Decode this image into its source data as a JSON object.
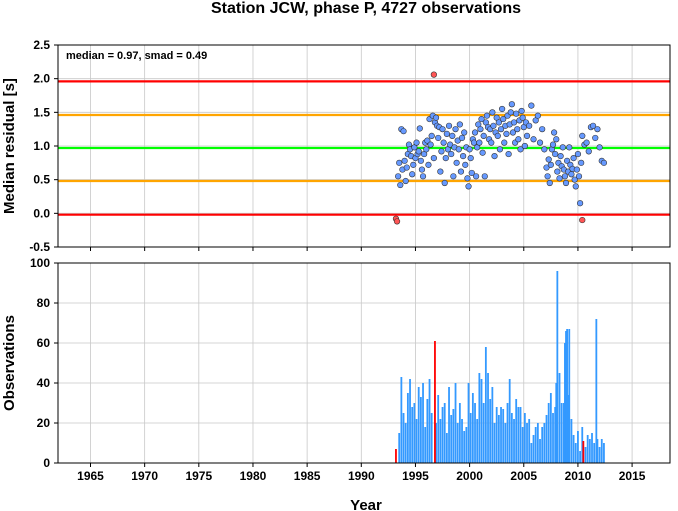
{
  "chart_data": [
    {
      "type": "scatter",
      "title": "Station JCW, phase P, 4727 observations",
      "annotation": "median = 0.97, smad = 0.49",
      "xlabel": "",
      "ylabel": "Median residual [s]",
      "xlim": [
        1962,
        2018.5
      ],
      "ylim": [
        -0.5,
        2.5
      ],
      "yticks": [
        "-0.5",
        "0.0",
        "0.5",
        "1.0",
        "1.5",
        "2.0",
        "2.5"
      ],
      "grid": true,
      "reference_lines": [
        {
          "y": 1.96,
          "color": "#ff0000"
        },
        {
          "y": 1.46,
          "color": "#ffa500"
        },
        {
          "y": 0.97,
          "color": "#00ff00"
        },
        {
          "y": 0.48,
          "color": "#ffa500"
        },
        {
          "y": -0.02,
          "color": "#ff0000"
        }
      ],
      "series": [
        {
          "color": "#6699ff",
          "x": [
            1993.4,
            1993.5,
            1993.6,
            1993.7,
            1993.8,
            1993.9,
            1994.0,
            1994.1,
            1994.2,
            1994.3,
            1994.4,
            1994.5,
            1994.6,
            1994.7,
            1994.8,
            1994.9,
            1995.0,
            1995.1,
            1995.2,
            1995.3,
            1995.4,
            1995.5,
            1995.6,
            1995.7,
            1995.8,
            1995.9,
            1996.0,
            1996.1,
            1996.2,
            1996.3,
            1996.4,
            1996.5,
            1996.6,
            1996.7,
            1996.8,
            1996.9,
            1997.0,
            1997.1,
            1997.2,
            1997.3,
            1997.4,
            1997.5,
            1997.6,
            1997.7,
            1997.8,
            1997.9,
            1998.0,
            1998.1,
            1998.2,
            1998.3,
            1998.4,
            1998.5,
            1998.6,
            1998.7,
            1998.8,
            1998.9,
            1999.0,
            1999.1,
            1999.2,
            1999.3,
            1999.4,
            1999.5,
            1999.6,
            1999.7,
            1999.8,
            1999.9,
            2000.0,
            2000.1,
            2000.2,
            2000.3,
            2000.4,
            2000.5,
            2000.6,
            2000.7,
            2000.8,
            2000.9,
            2001.0,
            2001.1,
            2001.2,
            2001.3,
            2001.4,
            2001.5,
            2001.6,
            2001.7,
            2001.8,
            2001.9,
            2002.0,
            2002.1,
            2002.2,
            2002.3,
            2002.4,
            2002.5,
            2002.6,
            2002.7,
            2002.8,
            2002.9,
            2003.0,
            2003.1,
            2003.2,
            2003.3,
            2003.4,
            2003.5,
            2003.6,
            2003.7,
            2003.8,
            2003.9,
            2004.0,
            2004.1,
            2004.2,
            2004.3,
            2004.4,
            2004.5,
            2004.6,
            2004.7,
            2004.8,
            2004.9,
            2005.0,
            2005.1,
            2005.2,
            2005.3,
            2005.5,
            2005.7,
            2005.9,
            2006.1,
            2006.3,
            2006.5,
            2006.7,
            2006.9,
            2007.1,
            2007.2,
            2007.3,
            2007.4,
            2007.5,
            2007.6,
            2007.7,
            2007.8,
            2007.9,
            2008.0,
            2008.1,
            2008.2,
            2008.3,
            2008.4,
            2008.5,
            2008.6,
            2008.7,
            2008.8,
            2008.9,
            2009.0,
            2009.1,
            2009.2,
            2009.3,
            2009.4,
            2009.5,
            2009.6,
            2009.7,
            2009.8,
            2009.9,
            2010.0,
            2010.1,
            2010.2,
            2010.3,
            2010.4,
            2010.6,
            2010.8,
            2011.0,
            2011.2,
            2011.4,
            2011.6,
            2011.8,
            2012.0,
            2012.2,
            2012.4
          ],
          "y": [
            0.55,
            0.75,
            0.42,
            1.25,
            0.65,
            1.22,
            0.78,
            0.48,
            0.68,
            0.88,
            1.02,
            0.95,
            0.85,
            0.58,
            0.72,
            0.98,
            0.82,
            1.05,
            0.88,
            0.92,
            1.26,
            0.78,
            0.65,
            0.55,
            0.88,
            1.05,
            0.95,
            1.08,
            0.72,
            1.4,
            1.02,
            1.15,
            1.45,
            0.82,
            1.35,
            1.42,
            1.3,
            1.12,
            1.28,
            0.62,
            0.92,
            1.25,
            1.05,
            0.45,
            0.82,
            1.18,
            0.95,
            1.3,
            1.02,
            0.88,
            1.15,
            0.55,
            0.98,
            1.25,
            0.75,
            1.08,
            0.95,
            1.32,
            0.62,
            1.12,
            0.85,
            1.2,
            0.72,
            0.98,
            0.52,
            0.4,
            0.95,
            0.82,
            0.6,
            1.1,
            1.05,
            1.2,
            0.55,
            0.98,
            1.32,
            1.05,
            1.25,
            1.4,
            0.9,
            1.15,
            0.55,
            1.35,
            1.45,
            1.28,
            1.1,
            1.25,
            1.05,
            1.5,
            1.3,
            0.85,
            1.2,
            1.42,
            1.15,
            1.35,
            0.95,
            1.25,
            1.55,
            1.4,
            1.05,
            1.3,
            1.18,
            1.45,
            0.88,
            1.32,
            1.5,
            1.62,
            1.2,
            1.35,
            1.05,
            1.48,
            1.25,
            1.1,
            1.38,
            0.95,
            1.52,
            1.42,
            1.28,
            1.0,
            1.35,
            1.15,
            1.3,
            1.6,
            1.1,
            1.38,
            1.45,
            1.05,
            1.25,
            0.95,
            0.68,
            0.55,
            0.8,
            0.45,
            0.72,
            0.95,
            1.02,
            1.2,
            0.88,
            1.1,
            0.62,
            0.75,
            0.52,
            0.85,
            0.7,
            0.98,
            0.65,
            0.55,
            0.45,
            0.78,
            0.62,
            0.98,
            0.72,
            0.58,
            0.66,
            0.82,
            0.5,
            0.4,
            0.65,
            0.88,
            0.55,
            0.15,
            0.75,
            1.15,
            1.02,
            1.05,
            0.92,
            1.28,
            1.3,
            1.12,
            1.25,
            0.98,
            0.78,
            0.75
          ]
        },
        {
          "color": "#ff5555",
          "x": [
            1993.2,
            1993.3,
            1996.7,
            2010.4
          ],
          "y": [
            -0.08,
            -0.12,
            2.06,
            -0.1
          ]
        }
      ]
    },
    {
      "type": "bar",
      "title": "",
      "xlabel": "Year",
      "ylabel": "Observations",
      "xlim": [
        1962,
        2018.5
      ],
      "ylim": [
        0,
        100
      ],
      "xticks": [
        "1965",
        "1970",
        "1975",
        "1980",
        "1985",
        "1990",
        "1995",
        "2000",
        "2005",
        "2010",
        "2015"
      ],
      "yticks": [
        "0",
        "20",
        "40",
        "60",
        "80",
        "100"
      ],
      "grid": true,
      "series": [
        {
          "color": "#3399ff",
          "x": [
            1993.5,
            1993.7,
            1993.9,
            1994.1,
            1994.3,
            1994.5,
            1994.7,
            1994.9,
            1995.1,
            1995.3,
            1995.5,
            1995.7,
            1995.9,
            1996.1,
            1996.3,
            1996.5,
            1996.9,
            1997.1,
            1997.3,
            1997.5,
            1997.7,
            1997.9,
            1998.1,
            1998.3,
            1998.5,
            1998.7,
            1998.9,
            1999.1,
            1999.3,
            1999.5,
            1999.7,
            1999.9,
            2000.1,
            2000.3,
            2000.5,
            2000.7,
            2000.9,
            2001.1,
            2001.3,
            2001.5,
            2001.7,
            2001.9,
            2002.1,
            2002.3,
            2002.5,
            2002.7,
            2002.9,
            2003.1,
            2003.3,
            2003.5,
            2003.7,
            2003.9,
            2004.1,
            2004.3,
            2004.5,
            2004.7,
            2004.9,
            2005.1,
            2005.3,
            2005.5,
            2005.7,
            2005.9,
            2006.1,
            2006.3,
            2006.5,
            2006.7,
            2006.9,
            2007.1,
            2007.3,
            2007.5,
            2007.7,
            2007.9,
            2008.0,
            2008.1,
            2008.3,
            2008.5,
            2008.7,
            2008.8,
            2008.9,
            2009.0,
            2009.1,
            2009.2,
            2009.4,
            2009.6,
            2009.8,
            2010.0,
            2010.2,
            2010.4,
            2010.7,
            2010.9,
            2011.1,
            2011.3,
            2011.5,
            2011.7,
            2011.8,
            2012.0,
            2012.2,
            2012.4
          ],
          "values": [
            15,
            43,
            25,
            20,
            35,
            42,
            28,
            30,
            22,
            38,
            33,
            40,
            18,
            32,
            42,
            25,
            20,
            34,
            22,
            28,
            30,
            15,
            38,
            24,
            27,
            40,
            20,
            30,
            22,
            16,
            18,
            40,
            25,
            35,
            30,
            22,
            45,
            42,
            30,
            58,
            45,
            32,
            38,
            20,
            28,
            24,
            28,
            27,
            20,
            30,
            42,
            25,
            22,
            32,
            28,
            28,
            18,
            25,
            20,
            22,
            10,
            14,
            18,
            20,
            12,
            18,
            20,
            24,
            30,
            35,
            25,
            28,
            40,
            96,
            45,
            30,
            30,
            60,
            66,
            67,
            34,
            67,
            22,
            14,
            10,
            16,
            6,
            18,
            8,
            14,
            12,
            15,
            10,
            72,
            12,
            8,
            12,
            10
          ]
        },
        {
          "color": "#ff0000",
          "x": [
            1993.2,
            1996.8,
            2010.5
          ],
          "values": [
            7,
            61,
            11
          ]
        }
      ]
    }
  ]
}
